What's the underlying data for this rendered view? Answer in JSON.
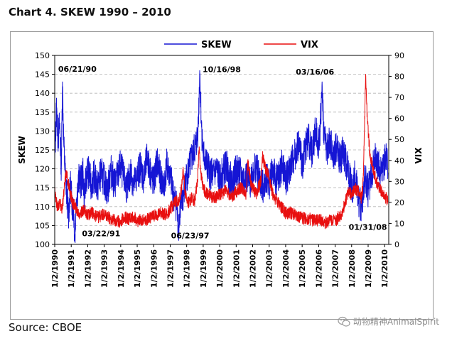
{
  "title": "Chart 4. SKEW 1990 – 2010",
  "source": "Source: CBOE",
  "watermark": "动物精神AnimalSpirit",
  "chart_data": {
    "type": "line",
    "title": "Chart 4. SKEW 1990 – 2010",
    "xlabel": "",
    "ylabel_left": "SKEW",
    "ylabel_right": "VIX",
    "ylim_left": [
      100,
      150
    ],
    "ylim_right": [
      0,
      90
    ],
    "yticks_left": [
      "100",
      "105",
      "110",
      "115",
      "120",
      "125",
      "130",
      "135",
      "140",
      "145",
      "150"
    ],
    "yticks_right": [
      "0",
      "10",
      "20",
      "30",
      "40",
      "50",
      "60",
      "70",
      "80",
      "90"
    ],
    "xlim": [
      1990.0,
      2010.25
    ],
    "x_ticks": [
      {
        "x": 1990,
        "label": "1/2/1990"
      },
      {
        "x": 1991,
        "label": "1/2/1991"
      },
      {
        "x": 1992,
        "label": "1/2/1992"
      },
      {
        "x": 1993,
        "label": "1/2/1993"
      },
      {
        "x": 1994,
        "label": "1/2/1994"
      },
      {
        "x": 1995,
        "label": "1/2/1995"
      },
      {
        "x": 1996,
        "label": "1/2/1996"
      },
      {
        "x": 1997,
        "label": "1/2/1997"
      },
      {
        "x": 1998,
        "label": "1/2/1998"
      },
      {
        "x": 1999,
        "label": "1/2/1999"
      },
      {
        "x": 2000,
        "label": "1/2/2000"
      },
      {
        "x": 2001,
        "label": "1/2/2001"
      },
      {
        "x": 2002,
        "label": "1/2/2002"
      },
      {
        "x": 2003,
        "label": "1/2/2003"
      },
      {
        "x": 2004,
        "label": "1/2/2004"
      },
      {
        "x": 2005,
        "label": "1/2/2005"
      },
      {
        "x": 2006,
        "label": "1/2/2006"
      },
      {
        "x": 2007,
        "label": "1/2/2007"
      },
      {
        "x": 2008,
        "label": "1/2/2008"
      },
      {
        "x": 2009,
        "label": "1/2/2009"
      },
      {
        "x": 2010,
        "label": "1/2/2010"
      }
    ],
    "grid": "horizontal-dashed",
    "legend": "top-center",
    "series": [
      {
        "name": "SKEW",
        "axis": "left",
        "color": "#1515d4",
        "x": [
          1990.0,
          1990.1,
          1990.2,
          1990.3,
          1990.4,
          1990.47,
          1990.55,
          1990.65,
          1990.75,
          1990.85,
          1990.95,
          1991.05,
          1991.15,
          1991.22,
          1991.3,
          1991.4,
          1991.5,
          1991.6,
          1991.7,
          1991.8,
          1991.9,
          1992.0,
          1992.2,
          1992.4,
          1992.6,
          1992.8,
          1993.0,
          1993.2,
          1993.4,
          1993.6,
          1993.8,
          1994.0,
          1994.2,
          1994.4,
          1994.6,
          1994.8,
          1995.0,
          1995.2,
          1995.4,
          1995.6,
          1995.8,
          1996.0,
          1996.2,
          1996.4,
          1996.6,
          1996.8,
          1997.0,
          1997.2,
          1997.4,
          1997.48,
          1997.6,
          1997.8,
          1998.0,
          1998.2,
          1998.4,
          1998.6,
          1998.7,
          1998.79,
          1998.9,
          1999.0,
          1999.2,
          1999.4,
          1999.6,
          1999.8,
          2000.0,
          2000.2,
          2000.4,
          2000.6,
          2000.8,
          2001.0,
          2001.2,
          2001.4,
          2001.6,
          2001.8,
          2002.0,
          2002.2,
          2002.4,
          2002.6,
          2002.8,
          2003.0,
          2003.2,
          2003.4,
          2003.6,
          2003.8,
          2004.0,
          2004.2,
          2004.4,
          2004.6,
          2004.8,
          2005.0,
          2005.2,
          2005.4,
          2005.6,
          2005.8,
          2006.0,
          2006.1,
          2006.21,
          2006.3,
          2006.5,
          2006.7,
          2006.9,
          2007.1,
          2007.3,
          2007.5,
          2007.7,
          2007.9,
          2008.05,
          2008.2,
          2008.4,
          2008.6,
          2008.8,
          2009.0,
          2009.2,
          2009.4,
          2009.6,
          2009.8,
          2010.0,
          2010.1,
          2010.2
        ],
        "values": [
          122,
          136,
          128,
          132,
          120,
          143,
          126,
          118,
          112,
          108,
          116,
          111,
          109,
          101,
          112,
          115,
          118,
          116,
          119,
          113,
          117,
          120,
          116,
          118,
          115,
          119,
          117,
          114,
          120,
          116,
          118,
          121,
          117,
          115,
          119,
          116,
          118,
          121,
          117,
          123,
          119,
          116,
          122,
          118,
          115,
          121,
          118,
          113,
          110,
          104,
          109,
          113,
          118,
          121,
          124,
          127,
          131,
          146,
          131,
          124,
          121,
          119,
          118,
          120,
          117,
          119,
          121,
          118,
          116,
          120,
          119,
          117,
          118,
          116,
          119,
          121,
          117,
          115,
          118,
          116,
          120,
          117,
          118,
          121,
          117,
          119,
          122,
          124,
          127,
          121,
          126,
          128,
          124,
          130,
          127,
          131,
          143,
          130,
          125,
          127,
          123,
          126,
          122,
          125,
          121,
          117,
          114,
          119,
          112,
          110,
          118,
          114,
          118,
          123,
          121,
          119,
          122,
          124,
          119
        ]
      },
      {
        "name": "VIX",
        "axis": "right",
        "color": "#e80f0f",
        "x": [
          1990.0,
          1990.15,
          1990.3,
          1990.45,
          1990.6,
          1990.7,
          1990.8,
          1990.95,
          1991.1,
          1991.3,
          1991.5,
          1991.8,
          1992.0,
          1992.3,
          1992.6,
          1992.9,
          1993.2,
          1993.5,
          1993.8,
          1994.0,
          1994.2,
          1994.5,
          1994.8,
          1995.0,
          1995.3,
          1995.6,
          1995.9,
          1996.2,
          1996.5,
          1996.8,
          1997.0,
          1997.3,
          1997.6,
          1997.8,
          1997.9,
          1998.1,
          1998.3,
          1998.5,
          1998.65,
          1998.75,
          1998.85,
          1999.0,
          1999.3,
          1999.6,
          1999.9,
          2000.1,
          2000.4,
          2000.7,
          2001.0,
          2001.3,
          2001.6,
          2001.7,
          2001.9,
          2002.2,
          2002.5,
          2002.6,
          2002.8,
          2003.0,
          2003.2,
          2003.5,
          2003.8,
          2004.0,
          2004.3,
          2004.6,
          2004.9,
          2005.2,
          2005.5,
          2005.8,
          2006.1,
          2006.4,
          2006.7,
          2007.0,
          2007.2,
          2007.4,
          2007.6,
          2007.8,
          2008.0,
          2008.2,
          2008.4,
          2008.6,
          2008.7,
          2008.78,
          2008.85,
          2008.95,
          2009.1,
          2009.3,
          2009.5,
          2009.7,
          2009.9,
          2010.1,
          2010.2
        ],
        "values": [
          26,
          18,
          20,
          17,
          28,
          35,
          30,
          24,
          20,
          17,
          15,
          16,
          14,
          15,
          13,
          14,
          13,
          12,
          11,
          11,
          13,
          12,
          13,
          11,
          12,
          12,
          13,
          14,
          15,
          14,
          17,
          20,
          22,
          35,
          25,
          20,
          22,
          21,
          30,
          45,
          35,
          26,
          24,
          22,
          23,
          24,
          26,
          22,
          25,
          27,
          24,
          40,
          28,
          24,
          30,
          42,
          35,
          32,
          24,
          20,
          17,
          15,
          15,
          14,
          13,
          12,
          12,
          11,
          12,
          10,
          12,
          11,
          13,
          14,
          20,
          25,
          24,
          27,
          25,
          22,
          30,
          55,
          81,
          60,
          44,
          35,
          30,
          27,
          24,
          22,
          20
        ]
      }
    ],
    "annotations": [
      {
        "text": "06/21/90",
        "x": 1990.47,
        "axis": "left",
        "value": 143
      },
      {
        "text": "03/22/91",
        "x": 1991.22,
        "axis": "left",
        "value": 101
      },
      {
        "text": "06/23/97",
        "x": 1997.48,
        "axis": "left",
        "value": 104
      },
      {
        "text": "10/16/98",
        "x": 1998.79,
        "axis": "left",
        "value": 146
      },
      {
        "text": "03/16/06",
        "x": 2006.21,
        "axis": "left",
        "value": 143
      },
      {
        "text": "01/31/08",
        "x": 2008.08,
        "axis": "left",
        "value": 108
      }
    ]
  }
}
